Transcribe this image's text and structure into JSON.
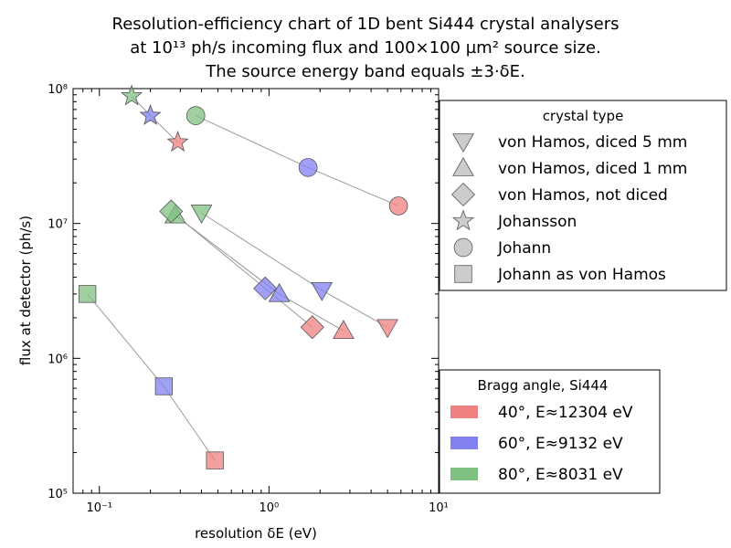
{
  "title_lines": [
    "Resolution-efficiency chart of 1D bent Si444 crystal analysers",
    "at 10¹³ ph/s incoming flux and 100×100 µm² source size.",
    "The source energy band equals ±3·δE."
  ],
  "chart_data": {
    "type": "scatter",
    "xlabel": "resolution δE (eV)",
    "ylabel": "flux at detector (ph/s)",
    "xscale": "log",
    "yscale": "log",
    "xlim": [
      0.07,
      10
    ],
    "ylim": [
      100000,
      100000000
    ],
    "x_ticks": [
      {
        "value": 0.1,
        "label": "10⁻¹"
      },
      {
        "value": 1,
        "label": "10⁰"
      },
      {
        "value": 10,
        "label": "10¹"
      }
    ],
    "y_ticks": [
      {
        "value": 100000,
        "label": "10⁵"
      },
      {
        "value": 1000000,
        "label": "10⁶"
      },
      {
        "value": 10000000,
        "label": "10⁷"
      },
      {
        "value": 100000000,
        "label": "10⁸"
      }
    ],
    "color_legend": {
      "title": "Bragg angle, Si444",
      "entries": [
        {
          "label": "40°, E≈12304 eV",
          "color": "#f08080"
        },
        {
          "label": "60°, E≈9132 eV",
          "color": "#8080f0"
        },
        {
          "label": "80°, E≈8031 eV",
          "color": "#80c080"
        }
      ]
    },
    "marker_legend": {
      "title": "crystal type",
      "entries": [
        {
          "label": "von Hamos, diced 5 mm",
          "marker": "triangle-down"
        },
        {
          "label": "von Hamos, diced 1 mm",
          "marker": "triangle-up"
        },
        {
          "label": "von Hamos, not diced",
          "marker": "diamond"
        },
        {
          "label": "Johansson",
          "marker": "star"
        },
        {
          "label": "Johann",
          "marker": "circle"
        },
        {
          "label": "Johann as von Hamos",
          "marker": "square"
        }
      ]
    },
    "series": [
      {
        "crystal": "von Hamos, diced 5 mm",
        "marker": "triangle-down",
        "points": [
          {
            "angle": "80°",
            "x": 0.4,
            "y": 12000000
          },
          {
            "angle": "60°",
            "x": 2.05,
            "y": 3200000
          },
          {
            "angle": "40°",
            "x": 5.0,
            "y": 1700000
          }
        ]
      },
      {
        "crystal": "von Hamos, diced 1 mm",
        "marker": "triangle-up",
        "points": [
          {
            "angle": "80°",
            "x": 0.28,
            "y": 11500000
          },
          {
            "angle": "60°",
            "x": 1.15,
            "y": 3000000
          },
          {
            "angle": "40°",
            "x": 2.75,
            "y": 1600000
          }
        ]
      },
      {
        "crystal": "von Hamos, not diced",
        "marker": "diamond",
        "points": [
          {
            "angle": "80°",
            "x": 0.265,
            "y": 12300000
          },
          {
            "angle": "60°",
            "x": 0.95,
            "y": 3300000
          },
          {
            "angle": "40°",
            "x": 1.8,
            "y": 1700000
          }
        ]
      },
      {
        "crystal": "Johansson",
        "marker": "star",
        "points": [
          {
            "angle": "80°",
            "x": 0.155,
            "y": 88000000
          },
          {
            "angle": "60°",
            "x": 0.2,
            "y": 63000000
          },
          {
            "angle": "40°",
            "x": 0.29,
            "y": 40000000
          }
        ]
      },
      {
        "crystal": "Johann",
        "marker": "circle",
        "points": [
          {
            "angle": "80°",
            "x": 0.37,
            "y": 63000000
          },
          {
            "angle": "60°",
            "x": 1.7,
            "y": 26000000
          },
          {
            "angle": "40°",
            "x": 5.8,
            "y": 13500000
          }
        ]
      },
      {
        "crystal": "Johann as von Hamos",
        "marker": "square",
        "points": [
          {
            "angle": "80°",
            "x": 0.085,
            "y": 3000000
          },
          {
            "angle": "60°",
            "x": 0.24,
            "y": 620000
          },
          {
            "angle": "40°",
            "x": 0.48,
            "y": 175000
          }
        ]
      }
    ]
  }
}
